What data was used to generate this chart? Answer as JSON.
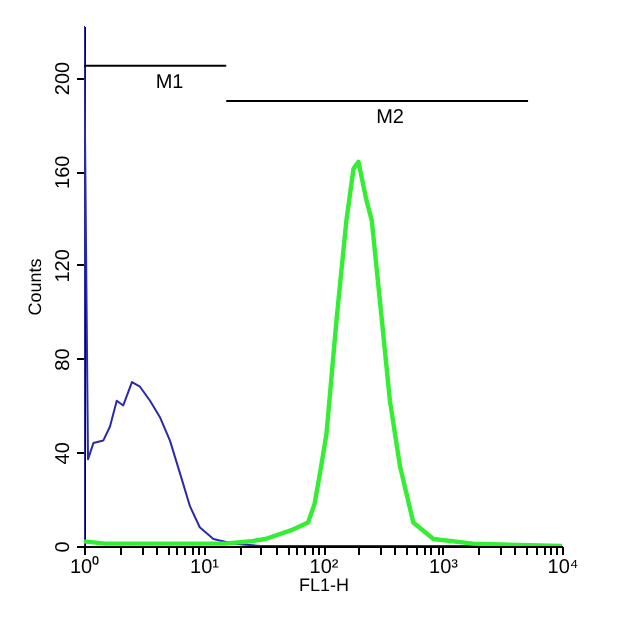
{
  "chart_data": {
    "type": "line",
    "xlabel": "FL1-H",
    "ylabel": "Counts",
    "log": "x",
    "grid": false,
    "marker": "none",
    "line_style": "solid",
    "xlim": [
      1,
      10000
    ],
    "ylim": [
      0,
      222
    ],
    "xticks": [
      {
        "value": 1,
        "label": "10⁰"
      },
      {
        "value": 2,
        "label": null
      },
      {
        "value": 3,
        "label": null
      },
      {
        "value": 4,
        "label": null
      },
      {
        "value": 5,
        "label": null
      },
      {
        "value": 6,
        "label": null
      },
      {
        "value": 7,
        "label": null
      },
      {
        "value": 8,
        "label": null
      },
      {
        "value": 9,
        "label": null
      },
      {
        "value": 10,
        "label": "10¹"
      },
      {
        "value": 20,
        "label": null
      },
      {
        "value": 30,
        "label": null
      },
      {
        "value": 40,
        "label": null
      },
      {
        "value": 50,
        "label": null
      },
      {
        "value": 60,
        "label": null
      },
      {
        "value": 70,
        "label": null
      },
      {
        "value": 80,
        "label": null
      },
      {
        "value": 90,
        "label": null
      },
      {
        "value": 100,
        "label": "10²"
      },
      {
        "value": 200,
        "label": null
      },
      {
        "value": 300,
        "label": null
      },
      {
        "value": 400,
        "label": null
      },
      {
        "value": 500,
        "label": null
      },
      {
        "value": 600,
        "label": null
      },
      {
        "value": 700,
        "label": null
      },
      {
        "value": 800,
        "label": null
      },
      {
        "value": 900,
        "label": null
      },
      {
        "value": 1000,
        "label": "10³"
      },
      {
        "value": 2000,
        "label": null
      },
      {
        "value": 3000,
        "label": null
      },
      {
        "value": 4000,
        "label": null
      },
      {
        "value": 5000,
        "label": null
      },
      {
        "value": 6000,
        "label": null
      },
      {
        "value": 7000,
        "label": null
      },
      {
        "value": 8000,
        "label": null
      },
      {
        "value": 9000,
        "label": null
      },
      {
        "value": 10000,
        "label": "10⁴"
      }
    ],
    "yticks": [
      0,
      40,
      80,
      120,
      160,
      200
    ],
    "series": [
      {
        "color": "#2a2aa8",
        "x": [
          1,
          1,
          1.08,
          1.2,
          1.45,
          1.65,
          1.88,
          2.13,
          2.52,
          2.94,
          3.57,
          4.32,
          5.24,
          6.36,
          7.7,
          9.3,
          12.1,
          17.8,
          30,
          100,
          1000,
          2000
        ],
        "values": [
          0,
          222,
          37,
          44,
          45,
          51,
          62,
          60,
          70,
          68,
          62,
          55,
          45,
          31,
          17,
          8,
          3,
          1,
          0,
          0,
          0,
          0
        ]
      },
      {
        "color": "#33ee33",
        "x": [
          1,
          1.5,
          3,
          8,
          15,
          25,
          33,
          56,
          75,
          85,
          95,
          107,
          130,
          157,
          180,
          198,
          230,
          256,
          299,
          363,
          441,
          570,
          840,
          1800,
          10000
        ],
        "values": [
          2,
          1,
          1,
          1,
          1,
          2,
          3,
          7,
          10,
          18,
          32,
          48,
          97,
          139,
          161,
          164,
          148,
          139,
          105,
          62,
          34,
          10,
          3,
          1,
          0
        ]
      },
      {
        "type": "line",
        "color": "#000000",
        "x": [
          1,
          15.5
        ],
        "values": [
          205,
          205
        ]
      },
      {
        "type": "line",
        "color": "#000000",
        "x": [
          15.5,
          5200
        ],
        "values": [
          190,
          190
        ]
      }
    ],
    "annotations": [
      {
        "text": "M1",
        "x": 5.2,
        "y": 205
      },
      {
        "text": "M2",
        "x": 364,
        "y": 190
      }
    ]
  }
}
